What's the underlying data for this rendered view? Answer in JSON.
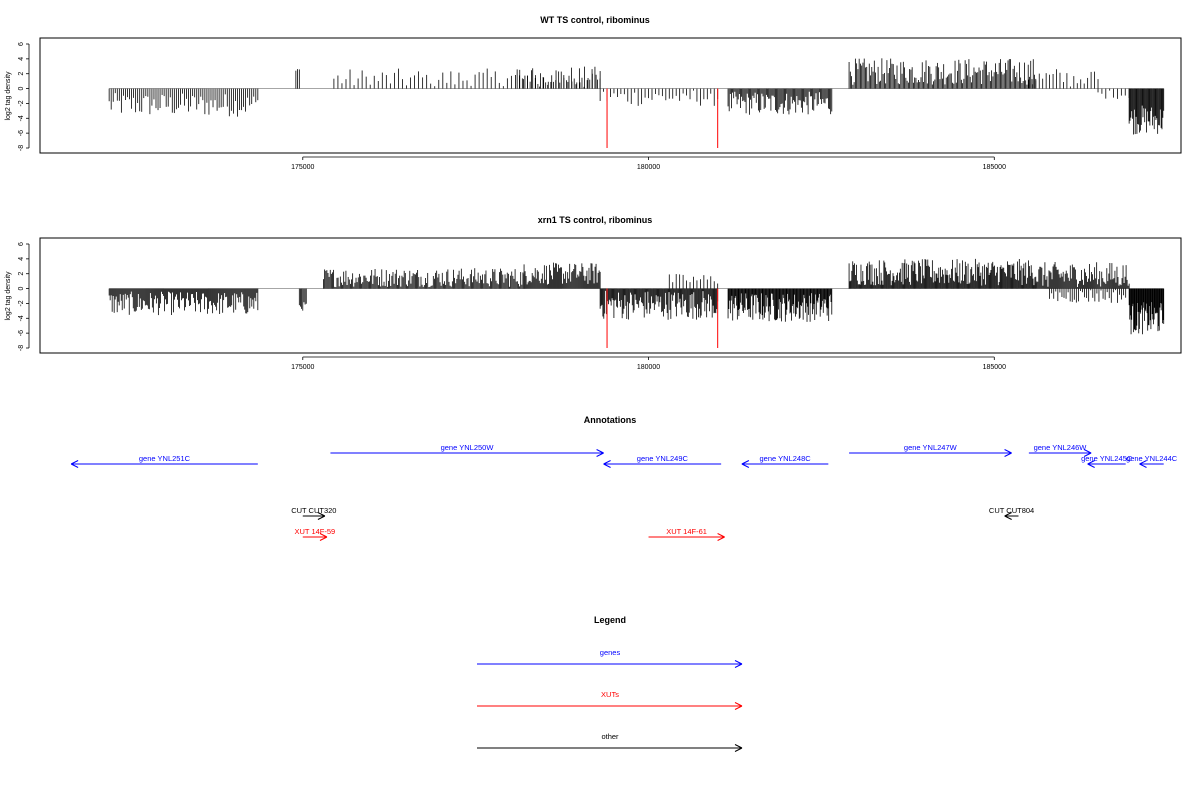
{
  "chart_data": [
    {
      "type": "bar",
      "title": "WT TS control, ribominus",
      "ylabel": "log2 tag density",
      "xlabel": "",
      "xlim": [
        171200,
        187700
      ],
      "ylim": [
        -8,
        6
      ],
      "x_ticks": [
        "175000",
        "180000",
        "185000"
      ],
      "y_ticks": [
        "6",
        "4",
        "2",
        "0",
        "-2",
        "-4",
        "-6",
        "-8"
      ],
      "grid": false,
      "segments": [
        {
          "start": 172200,
          "end": 174350,
          "mean": -2.2,
          "amp": 1.6,
          "density": 0.5
        },
        {
          "start": 174900,
          "end": 174950,
          "mean": 2.6,
          "amp": 0.2,
          "density": 1
        },
        {
          "start": 175450,
          "end": 179300,
          "mean": 1.3,
          "amp": 1.4,
          "density": 0.25
        },
        {
          "start": 178100,
          "end": 179300,
          "mean": 1.8,
          "amp": 1.2,
          "density": 0.4
        },
        {
          "start": 179300,
          "end": 181000,
          "mean": -1.2,
          "amp": 1.2,
          "density": 0.3
        },
        {
          "start": 181150,
          "end": 182650,
          "mean": -2.0,
          "amp": 1.6,
          "density": 0.9
        },
        {
          "start": 182900,
          "end": 185600,
          "mean": 2.3,
          "amp": 1.8,
          "density": 0.8
        },
        {
          "start": 185500,
          "end": 186500,
          "mean": 1.4,
          "amp": 1.4,
          "density": 0.3
        },
        {
          "start": 186500,
          "end": 186950,
          "mean": -0.8,
          "amp": 0.6,
          "density": 0.3
        },
        {
          "start": 186950,
          "end": 187450,
          "mean": -4.2,
          "amp": 2.0,
          "density": 1.2
        }
      ],
      "highlight": [
        {
          "x": 179400,
          "value": -8,
          "color": "#ff0000"
        },
        {
          "x": 181000,
          "value": -8,
          "color": "#ff0000"
        }
      ]
    },
    {
      "type": "bar",
      "title": "xrn1 TS control, ribominus",
      "ylabel": "log2 tag density",
      "xlabel": "",
      "xlim": [
        171200,
        187700
      ],
      "ylim": [
        -8,
        6
      ],
      "x_ticks": [
        "175000",
        "180000",
        "185000"
      ],
      "y_ticks": [
        "6",
        "4",
        "2",
        "0",
        "-2",
        "-4",
        "-6",
        "-8"
      ],
      "grid": false,
      "segments": [
        {
          "start": 172200,
          "end": 174350,
          "mean": -2.0,
          "amp": 1.6,
          "density": 1.0
        },
        {
          "start": 174950,
          "end": 175050,
          "mean": -2.4,
          "amp": 0.6,
          "density": 1
        },
        {
          "start": 175300,
          "end": 178200,
          "mean": 1.5,
          "amp": 1.3,
          "density": 0.9
        },
        {
          "start": 178200,
          "end": 179300,
          "mean": 2.0,
          "amp": 1.5,
          "density": 1.0
        },
        {
          "start": 179300,
          "end": 181000,
          "mean": -2.2,
          "amp": 2.0,
          "density": 1.1
        },
        {
          "start": 180300,
          "end": 181000,
          "mean": 1.2,
          "amp": 0.8,
          "density": 0.3
        },
        {
          "start": 181150,
          "end": 182650,
          "mean": -2.5,
          "amp": 2.0,
          "density": 1.3
        },
        {
          "start": 182900,
          "end": 185600,
          "mean": 2.2,
          "amp": 1.8,
          "density": 1.1
        },
        {
          "start": 185600,
          "end": 186950,
          "mean": 1.8,
          "amp": 1.8,
          "density": 1.0
        },
        {
          "start": 185800,
          "end": 186900,
          "mean": -1.0,
          "amp": 1.0,
          "density": 0.5
        },
        {
          "start": 186950,
          "end": 187450,
          "mean": -4.0,
          "amp": 2.2,
          "density": 1.6
        }
      ],
      "highlight": [
        {
          "x": 179400,
          "value": -8,
          "color": "#ff0000"
        },
        {
          "x": 181000,
          "value": -8,
          "color": "#ff0000"
        }
      ]
    }
  ],
  "annotations": {
    "title": "Annotations",
    "features": [
      {
        "label": "gene YNL251C",
        "kind": "gene",
        "start": 174350,
        "end": 171650,
        "row": 1
      },
      {
        "label": "gene YNL250W",
        "kind": "gene",
        "start": 175400,
        "end": 179350,
        "row": 0
      },
      {
        "label": "gene YNL249C",
        "kind": "gene",
        "start": 181050,
        "end": 179350,
        "row": 1
      },
      {
        "label": "gene YNL248C",
        "kind": "gene",
        "start": 182600,
        "end": 181350,
        "row": 1
      },
      {
        "label": "gene YNL247W",
        "kind": "gene",
        "start": 182900,
        "end": 185250,
        "row": 0
      },
      {
        "label": "gene YNL246W",
        "kind": "gene",
        "start": 185500,
        "end": 186400,
        "row": 0
      },
      {
        "label": "gene YNL245C",
        "kind": "gene",
        "start": 186900,
        "end": 186350,
        "row": 1
      },
      {
        "label": "gene YNL244C",
        "kind": "gene",
        "start": 187450,
        "end": 187100,
        "row": 1
      },
      {
        "label": "CUT CUT320",
        "kind": "other",
        "start": 175000,
        "end": 175320,
        "row": 2
      },
      {
        "label": "XUT 14F-59",
        "kind": "xut",
        "start": 175000,
        "end": 175350,
        "row": 3
      },
      {
        "label": "XUT 14F-61",
        "kind": "xut",
        "start": 180000,
        "end": 181100,
        "row": 3
      },
      {
        "label": "CUT CUT804",
        "kind": "other",
        "start": 185350,
        "end": 185150,
        "row": 2
      }
    ]
  },
  "legend": {
    "title": "Legend",
    "items": [
      {
        "label": "genes",
        "kind": "gene"
      },
      {
        "label": "XUTs",
        "kind": "xut"
      },
      {
        "label": "other",
        "kind": "other"
      }
    ]
  },
  "colors": {
    "gene": "#0000ff",
    "xut": "#ff0000",
    "other": "#000000",
    "bar": "#000000",
    "zero": "#999999"
  }
}
